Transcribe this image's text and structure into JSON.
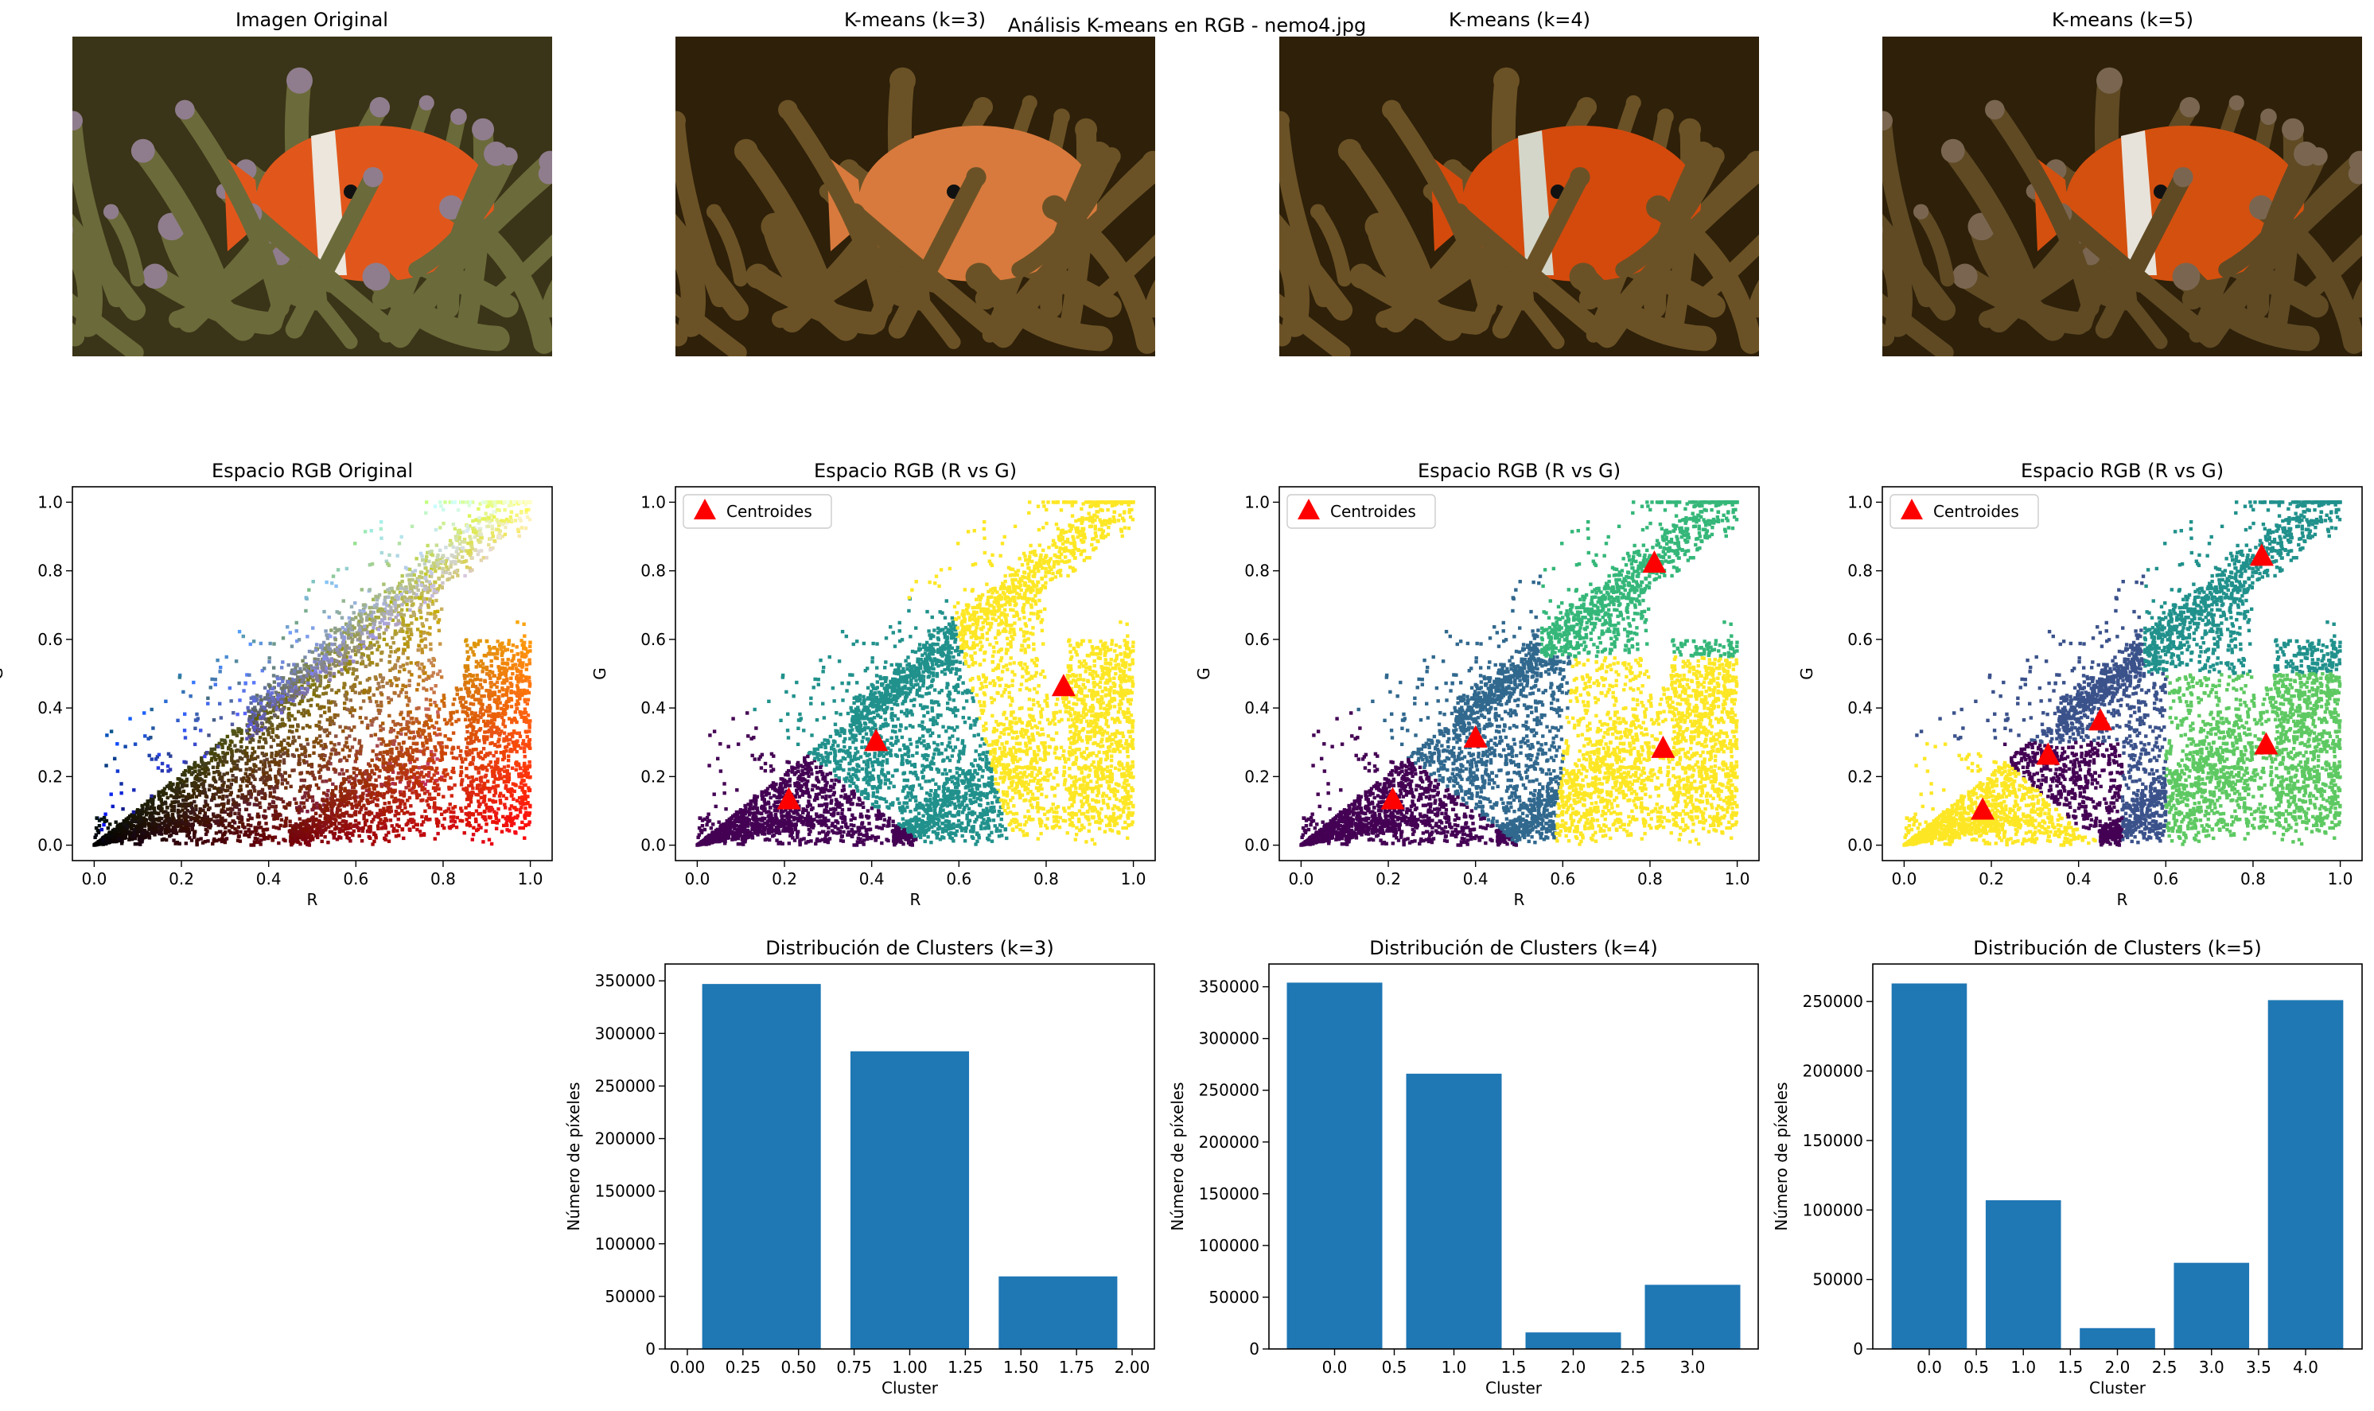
{
  "figure": {
    "suptitle": "Análisis K-means en RGB - nemo4.jpg"
  },
  "images": [
    {
      "title": "Imagen Original",
      "palette": {
        "bg": "#3a3418",
        "body": "#e1571b",
        "stripe": "#ece6dc",
        "tentacle": "#6b6a3a",
        "tip": "#8f7d8d"
      }
    },
    {
      "title": "K-means (k=3)",
      "palette": {
        "bg": "#2e2009",
        "body": "#d87a3d",
        "stripe": "#d87a3d",
        "tentacle": "#6b5226",
        "tip": "#6b5226"
      }
    },
    {
      "title": "K-means (k=4)",
      "palette": {
        "bg": "#2e2009",
        "body": "#d44a0c",
        "stripe": "#d4d6c9",
        "tentacle": "#6b5226",
        "tip": "#6b5226"
      }
    },
    {
      "title": "K-means (k=5)",
      "palette": {
        "bg": "#2e2009",
        "body": "#d4500f",
        "stripe": "#e8e3da",
        "tentacle": "#5f4a24",
        "tip": "#7a6650"
      }
    }
  ],
  "chart_data": [
    {
      "type": "scatter",
      "title": "Espacio RGB Original",
      "xlabel": "R",
      "ylabel": "G",
      "xlim": [
        -0.05,
        1.05
      ],
      "ylim": [
        -0.045,
        1.045
      ],
      "xticks": [
        0.0,
        0.2,
        0.4,
        0.6,
        0.8,
        1.0
      ],
      "xtick_labels": [
        "0.0",
        "0.2",
        "0.4",
        "0.6",
        "0.8",
        "1.0"
      ],
      "yticks": [
        0.0,
        0.2,
        0.4,
        0.6,
        0.8,
        1.0
      ],
      "ytick_labels": [
        "0.0",
        "0.2",
        "0.4",
        "0.6",
        "0.8",
        "1.0"
      ],
      "coloring": "rgb"
    },
    {
      "type": "scatter",
      "title": "Espacio RGB (R vs G)",
      "xlabel": "R",
      "ylabel": "G",
      "xlim": [
        -0.05,
        1.05
      ],
      "ylim": [
        -0.045,
        1.045
      ],
      "xticks": [
        0.0,
        0.2,
        0.4,
        0.6,
        0.8,
        1.0
      ],
      "xtick_labels": [
        "0.0",
        "0.2",
        "0.4",
        "0.6",
        "0.8",
        "1.0"
      ],
      "yticks": [
        0.0,
        0.2,
        0.4,
        0.6,
        0.8,
        1.0
      ],
      "ytick_labels": [
        "0.0",
        "0.2",
        "0.4",
        "0.6",
        "0.8",
        "1.0"
      ],
      "legend": {
        "label": "Centroides",
        "position": "upper-left"
      },
      "cluster_colors": [
        "#440154",
        "#21918c",
        "#fde725"
      ],
      "centroids": [
        {
          "r": 0.21,
          "g": 0.13
        },
        {
          "r": 0.41,
          "g": 0.3
        },
        {
          "r": 0.84,
          "g": 0.46
        }
      ],
      "centroid_color": "#ff0000"
    },
    {
      "type": "scatter",
      "title": "Espacio RGB (R vs G)",
      "xlabel": "R",
      "ylabel": "G",
      "xlim": [
        -0.05,
        1.05
      ],
      "ylim": [
        -0.045,
        1.045
      ],
      "xticks": [
        0.0,
        0.2,
        0.4,
        0.6,
        0.8,
        1.0
      ],
      "xtick_labels": [
        "0.0",
        "0.2",
        "0.4",
        "0.6",
        "0.8",
        "1.0"
      ],
      "yticks": [
        0.0,
        0.2,
        0.4,
        0.6,
        0.8,
        1.0
      ],
      "ytick_labels": [
        "0.0",
        "0.2",
        "0.4",
        "0.6",
        "0.8",
        "1.0"
      ],
      "legend": {
        "label": "Centroides",
        "position": "upper-left"
      },
      "cluster_colors": [
        "#440154",
        "#31688e",
        "#35b779",
        "#fde725"
      ],
      "centroids": [
        {
          "r": 0.21,
          "g": 0.13
        },
        {
          "r": 0.4,
          "g": 0.31
        },
        {
          "r": 0.81,
          "g": 0.82
        },
        {
          "r": 0.83,
          "g": 0.28
        }
      ],
      "centroid_color": "#ff0000"
    },
    {
      "type": "scatter",
      "title": "Espacio RGB (R vs G)",
      "xlabel": "R",
      "ylabel": "G",
      "xlim": [
        -0.05,
        1.05
      ],
      "ylim": [
        -0.045,
        1.045
      ],
      "xticks": [
        0.0,
        0.2,
        0.4,
        0.6,
        0.8,
        1.0
      ],
      "xtick_labels": [
        "0.0",
        "0.2",
        "0.4",
        "0.6",
        "0.8",
        "1.0"
      ],
      "yticks": [
        0.0,
        0.2,
        0.4,
        0.6,
        0.8,
        1.0
      ],
      "ytick_labels": [
        "0.0",
        "0.2",
        "0.4",
        "0.6",
        "0.8",
        "1.0"
      ],
      "legend": {
        "label": "Centroides",
        "position": "upper-left"
      },
      "cluster_colors": [
        "#440154",
        "#3b528b",
        "#21918c",
        "#5ec962",
        "#fde725"
      ],
      "centroids": [
        {
          "r": 0.18,
          "g": 0.1
        },
        {
          "r": 0.33,
          "g": 0.26
        },
        {
          "r": 0.45,
          "g": 0.36
        },
        {
          "r": 0.82,
          "g": 0.84
        },
        {
          "r": 0.83,
          "g": 0.29
        }
      ],
      "centroid_color": "#ff0000"
    },
    {
      "type": "bar",
      "title": "Distribución de Clusters (k=3)",
      "xlabel": "Cluster",
      "ylabel": "Número de píxeles",
      "x": [
        0,
        1,
        2
      ],
      "values": [
        347000,
        283000,
        69000
      ],
      "bar_color": "#1f77b4",
      "xlim": [
        -0.1,
        2.1
      ],
      "ylim": [
        0,
        366000
      ],
      "xticks": [
        0.0,
        0.25,
        0.5,
        0.75,
        1.0,
        1.25,
        1.5,
        1.75,
        2.0
      ],
      "xtick_labels": [
        "0.00",
        "0.25",
        "0.50",
        "0.75",
        "1.00",
        "1.25",
        "1.50",
        "1.75",
        "2.00"
      ],
      "yticks": [
        0,
        50000,
        100000,
        150000,
        200000,
        250000,
        300000,
        350000
      ],
      "ytick_labels": [
        "0",
        "50000",
        "100000",
        "150000",
        "200000",
        "250000",
        "300000",
        "350000"
      ]
    },
    {
      "type": "bar",
      "title": "Distribución de Clusters (k=4)",
      "xlabel": "Cluster",
      "ylabel": "Número de píxeles",
      "x": [
        0,
        1,
        2,
        3
      ],
      "values": [
        354000,
        266000,
        16000,
        62000
      ],
      "bar_color": "#1f77b4",
      "xlim": [
        -0.55,
        3.55
      ],
      "ylim": [
        0,
        372000
      ],
      "xticks": [
        0.0,
        0.5,
        1.0,
        1.5,
        2.0,
        2.5,
        3.0
      ],
      "xtick_labels": [
        "0.0",
        "0.5",
        "1.0",
        "1.5",
        "2.0",
        "2.5",
        "3.0"
      ],
      "yticks": [
        0,
        50000,
        100000,
        150000,
        200000,
        250000,
        300000,
        350000
      ],
      "ytick_labels": [
        "0",
        "50000",
        "100000",
        "150000",
        "200000",
        "250000",
        "300000",
        "350000"
      ]
    },
    {
      "type": "bar",
      "title": "Distribución de Clusters (k=5)",
      "xlabel": "Cluster",
      "ylabel": "Número de píxeles",
      "x": [
        0,
        1,
        2,
        3,
        4
      ],
      "values": [
        263000,
        107000,
        15000,
        62000,
        251000
      ],
      "bar_color": "#1f77b4",
      "xlim": [
        -0.6,
        4.6
      ],
      "ylim": [
        0,
        277000
      ],
      "xticks": [
        0.0,
        0.5,
        1.0,
        1.5,
        2.0,
        2.5,
        3.0,
        3.5,
        4.0
      ],
      "xtick_labels": [
        "0.0",
        "0.5",
        "1.0",
        "1.5",
        "2.0",
        "2.5",
        "3.0",
        "3.5",
        "4.0"
      ],
      "yticks": [
        0,
        50000,
        100000,
        150000,
        200000,
        250000
      ],
      "ytick_labels": [
        "0",
        "50000",
        "100000",
        "150000",
        "200000",
        "250000"
      ]
    }
  ]
}
